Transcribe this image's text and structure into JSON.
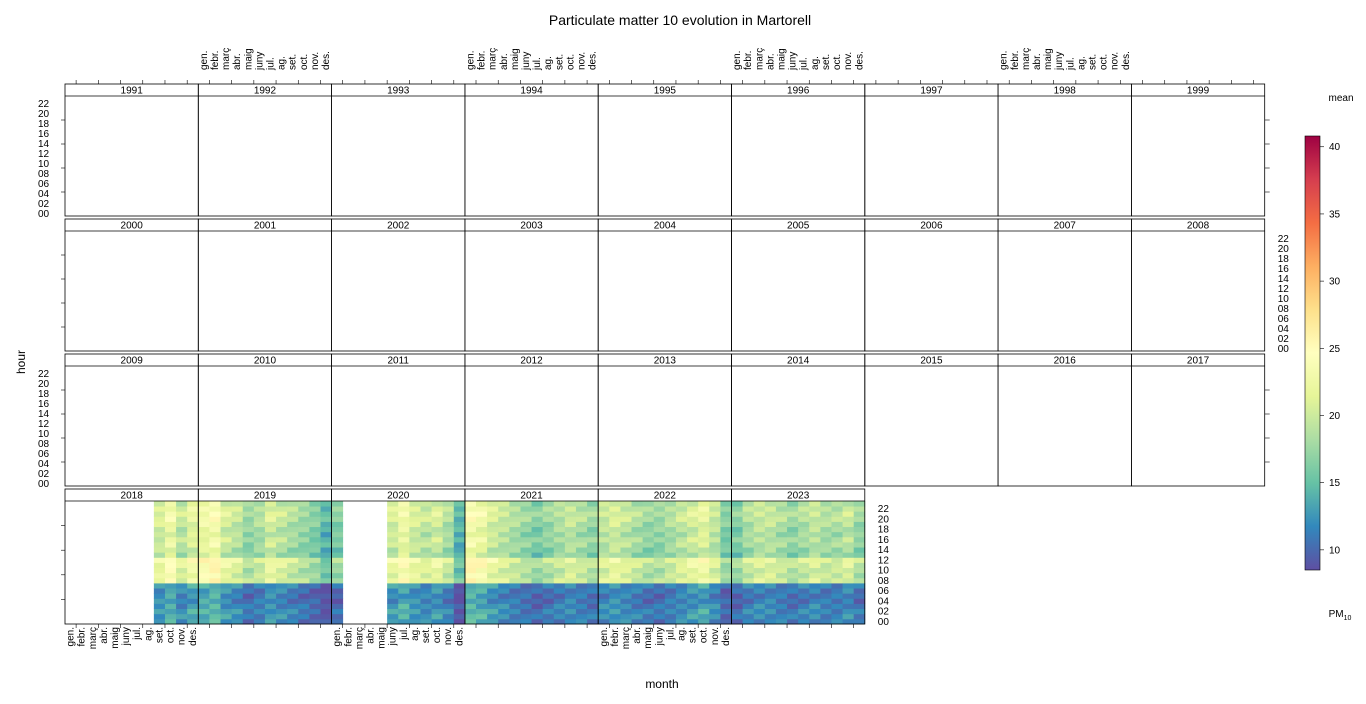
{
  "chart_data": {
    "type": "heatmap",
    "title": "Particulate matter 10 evolution in Martorell",
    "xlabel": "month",
    "ylabel": "hour",
    "colorbar": {
      "title": "mean",
      "label_main": "PM",
      "label_sub": "10",
      "ticks": [
        "10",
        "15",
        "20",
        "25",
        "30",
        "35",
        "40"
      ],
      "range": [
        8.5,
        40.8
      ],
      "palette": [
        "#5E4FA2",
        "#3288BD",
        "#66C2A5",
        "#ABDDA4",
        "#E6F598",
        "#FFFFBF",
        "#FEE08B",
        "#FDAE61",
        "#F46D43",
        "#D53E4F",
        "#9E0142"
      ]
    },
    "month_labels": [
      "gen.",
      "febr.",
      "març",
      "abr.",
      "maig",
      "juny",
      "jul.",
      "ag.",
      "set.",
      "oct.",
      "nov.",
      "des."
    ],
    "hour_labels": [
      "00",
      "02",
      "04",
      "06",
      "08",
      "10",
      "12",
      "14",
      "16",
      "18",
      "20",
      "22"
    ],
    "panels": [
      [
        "1991",
        "1992",
        "1993",
        "1994",
        "1995",
        "1996",
        "1997",
        "1998",
        "1999"
      ],
      [
        "2000",
        "2001",
        "2002",
        "2003",
        "2004",
        "2005",
        "2006",
        "2007",
        "2008"
      ],
      [
        "2009",
        "2010",
        "2011",
        "2012",
        "2013",
        "2014",
        "2015",
        "2016",
        "2017"
      ],
      [
        "2018",
        "2019",
        "2020",
        "2021",
        "2022",
        "2023"
      ]
    ],
    "series": [
      {
        "year": "2018",
        "monthly_profile": [
          null,
          null,
          null,
          null,
          null,
          null,
          null,
          null,
          20,
          22,
          19,
          21
        ]
      },
      {
        "year": "2019",
        "monthly_profile": [
          22,
          23,
          20,
          19,
          17,
          18,
          20,
          19,
          18,
          17,
          16,
          14
        ]
      },
      {
        "year": "2020",
        "monthly_profile": [
          16,
          null,
          null,
          null,
          null,
          20,
          22,
          20,
          19,
          20,
          18,
          14
        ]
      },
      {
        "year": "2021",
        "monthly_profile": [
          23,
          22,
          20,
          19,
          18,
          17,
          16,
          17,
          18,
          19,
          18,
          17
        ]
      },
      {
        "year": "2022",
        "monthly_profile": [
          19,
          20,
          19,
          18,
          17,
          17,
          18,
          19,
          20,
          21,
          19,
          16
        ]
      },
      {
        "year": "2023",
        "monthly_profile": [
          16,
          18,
          19,
          19,
          18,
          17,
          18,
          19,
          18,
          18,
          19,
          17
        ]
      }
    ]
  }
}
